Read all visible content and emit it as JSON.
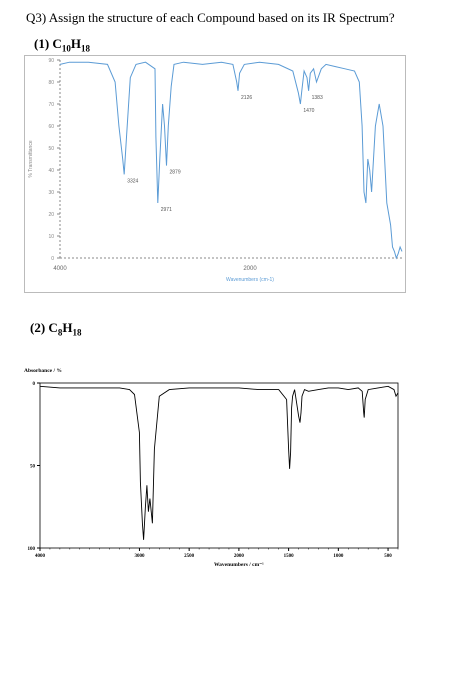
{
  "question": {
    "title": "Q3) Assign the structure of each Compound based on its IR Spectrum?",
    "compound1": {
      "prefix": "(1) ",
      "formula_parts": [
        "C",
        "10",
        "H",
        "18"
      ]
    },
    "compound2": {
      "prefix": "(2) ",
      "formula_parts": [
        "C",
        "8",
        "H",
        "18"
      ]
    }
  },
  "chart_data": [
    {
      "type": "line",
      "ylabel": "% Transmittance",
      "xlabel": "Wavenumbers (cm-1)",
      "xlim": [
        4000,
        400
      ],
      "ylim": [
        0,
        90
      ],
      "x_ticks": [
        "4000",
        "2000"
      ],
      "y_ticks": [
        "0",
        "10",
        "20",
        "30",
        "40",
        "50",
        "60",
        "70",
        "80",
        "90"
      ],
      "grid": false,
      "line_color": "#5b9bd5",
      "series": [
        {
          "x": [
            4000,
            3900,
            3700,
            3500,
            3420,
            3380,
            3340,
            3324,
            3300,
            3260,
            3200,
            3100,
            3000,
            2990,
            2971,
            2950,
            2920,
            2900,
            2879,
            2860,
            2830,
            2800,
            2700,
            2500,
            2300,
            2180,
            2140,
            2126,
            2110,
            2060,
            1900,
            1700,
            1550,
            1490,
            1470,
            1455,
            1430,
            1400,
            1383,
            1365,
            1330,
            1300,
            1250,
            1200,
            1100,
            1000,
            900,
            850,
            820,
            800,
            780,
            760,
            740,
            720,
            680,
            640,
            600,
            560,
            520,
            500,
            480,
            460,
            440,
            420,
            400
          ],
          "y": [
            88,
            89,
            89,
            88,
            80,
            60,
            45,
            38,
            55,
            82,
            88,
            89,
            86,
            55,
            25,
            45,
            70,
            60,
            42,
            60,
            78,
            88,
            89,
            88,
            89,
            88,
            80,
            76,
            84,
            88,
            89,
            88,
            85,
            75,
            70,
            76,
            85,
            82,
            76,
            84,
            86,
            80,
            86,
            88,
            87,
            86,
            85,
            80,
            60,
            30,
            25,
            45,
            40,
            30,
            60,
            70,
            60,
            25,
            15,
            5,
            3,
            0,
            2,
            5,
            3
          ]
        }
      ],
      "annotations": [
        {
          "x": 3324,
          "y": 38,
          "label": "3324"
        },
        {
          "x": 2971,
          "y": 25,
          "label": "2971"
        },
        {
          "x": 2879,
          "y": 42,
          "label": "2879"
        },
        {
          "x": 2126,
          "y": 76,
          "label": "2126"
        },
        {
          "x": 1470,
          "y": 70,
          "label": "1470"
        },
        {
          "x": 1383,
          "y": 76,
          "label": "1383"
        }
      ]
    },
    {
      "type": "line",
      "ylabel": "Absorbance / %",
      "xlabel": "Wavenumbers / cm⁻¹",
      "xlim": [
        4000,
        400
      ],
      "ylim": [
        0,
        100
      ],
      "y_inverted": true,
      "x_ticks": [
        "4000",
        "3000",
        "2500",
        "2000",
        "1500",
        "1000",
        "500"
      ],
      "y_ticks": [
        "0",
        "50",
        "100"
      ],
      "grid": false,
      "line_color": "#000000",
      "series": [
        {
          "x": [
            4000,
            3800,
            3600,
            3400,
            3200,
            3100,
            3050,
            3000,
            2990,
            2970,
            2958,
            2940,
            2925,
            2910,
            2895,
            2870,
            2850,
            2800,
            2700,
            2500,
            2300,
            2000,
            1800,
            1600,
            1520,
            1500,
            1490,
            1480,
            1470,
            1460,
            1440,
            1420,
            1400,
            1385,
            1375,
            1365,
            1340,
            1300,
            1200,
            1100,
            1000,
            900,
            800,
            760,
            745,
            740,
            730,
            700,
            600,
            500,
            440,
            420,
            400
          ],
          "y": [
            2,
            3,
            3,
            3,
            3,
            4,
            7,
            30,
            60,
            85,
            95,
            75,
            62,
            78,
            70,
            85,
            40,
            8,
            4,
            3,
            3,
            3,
            4,
            4,
            10,
            40,
            52,
            42,
            15,
            8,
            4,
            12,
            20,
            24,
            18,
            8,
            4,
            5,
            4,
            3,
            3,
            4,
            3,
            5,
            18,
            21,
            10,
            4,
            3,
            2,
            4,
            8,
            6
          ]
        }
      ]
    }
  ]
}
